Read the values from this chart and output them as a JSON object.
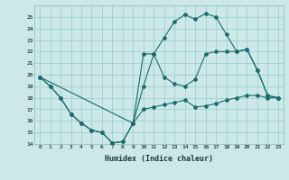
{
  "xlabel": "Humidex (Indice chaleur)",
  "bg_color": "#cce8e8",
  "grid_color": "#99cccc",
  "line_color": "#1a6b6b",
  "xlim": [
    -0.5,
    23.5
  ],
  "ylim": [
    14,
    26
  ],
  "xticks": [
    0,
    1,
    2,
    3,
    4,
    5,
    6,
    7,
    8,
    9,
    10,
    11,
    12,
    13,
    14,
    15,
    16,
    17,
    18,
    19,
    20,
    21,
    22,
    23
  ],
  "yticks": [
    14,
    15,
    16,
    17,
    18,
    19,
    20,
    21,
    22,
    23,
    24,
    25
  ],
  "line1_x": [
    0,
    1,
    2,
    3,
    4,
    5,
    6,
    7,
    8,
    9,
    10,
    11,
    12,
    13,
    14,
    15,
    16,
    17,
    18,
    19,
    20,
    21,
    22,
    23
  ],
  "line1_y": [
    19.8,
    19.0,
    18.0,
    16.6,
    15.8,
    15.2,
    15.0,
    14.1,
    14.2,
    15.8,
    17.0,
    17.2,
    17.4,
    17.6,
    17.8,
    17.2,
    17.3,
    17.5,
    17.8,
    18.0,
    18.2,
    18.2,
    18.0,
    18.0
  ],
  "line2_x": [
    0,
    1,
    2,
    3,
    4,
    5,
    6,
    7,
    8,
    9,
    10,
    11,
    12,
    13,
    14,
    15,
    16,
    17,
    18,
    19,
    20,
    21,
    22,
    23
  ],
  "line2_y": [
    19.8,
    19.0,
    18.0,
    16.6,
    15.8,
    15.2,
    15.0,
    14.1,
    14.2,
    15.8,
    19.0,
    21.8,
    23.2,
    24.6,
    25.2,
    24.8,
    25.3,
    25.0,
    23.5,
    22.0,
    22.2,
    20.4,
    18.2,
    18.0
  ],
  "line3_x": [
    0,
    9,
    10,
    11,
    12,
    13,
    14,
    15,
    16,
    17,
    18,
    19,
    20,
    21,
    22,
    23
  ],
  "line3_y": [
    19.8,
    15.8,
    21.8,
    21.8,
    19.8,
    19.2,
    19.0,
    19.6,
    21.8,
    22.0,
    22.0,
    22.0,
    22.2,
    20.4,
    18.2,
    18.0
  ]
}
